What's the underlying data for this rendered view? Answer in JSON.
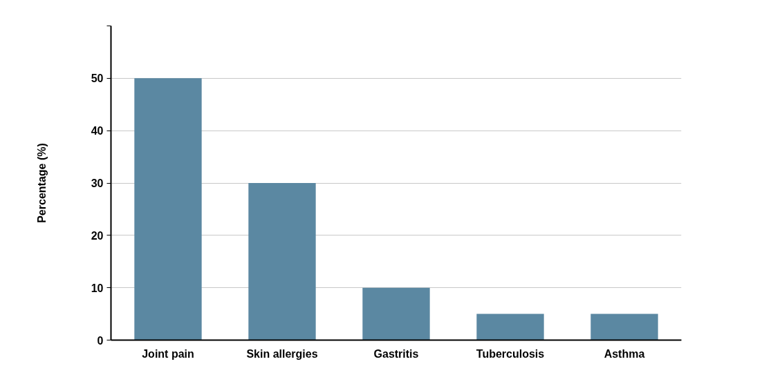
{
  "chart_data": {
    "type": "bar",
    "ylabel": "Percentage (%)",
    "categories": [
      "Joint pain",
      "Skin allergies",
      "Gastritis",
      "Tuberculosis",
      "Asthma"
    ],
    "values": [
      50,
      30,
      10,
      5,
      5
    ],
    "color": "#5b88a2",
    "ylim": [
      0,
      60
    ],
    "yticks": [
      0,
      10,
      20,
      30,
      40,
      50,
      {
        "value": 60,
        "label": null
      }
    ],
    "grid": "y"
  }
}
